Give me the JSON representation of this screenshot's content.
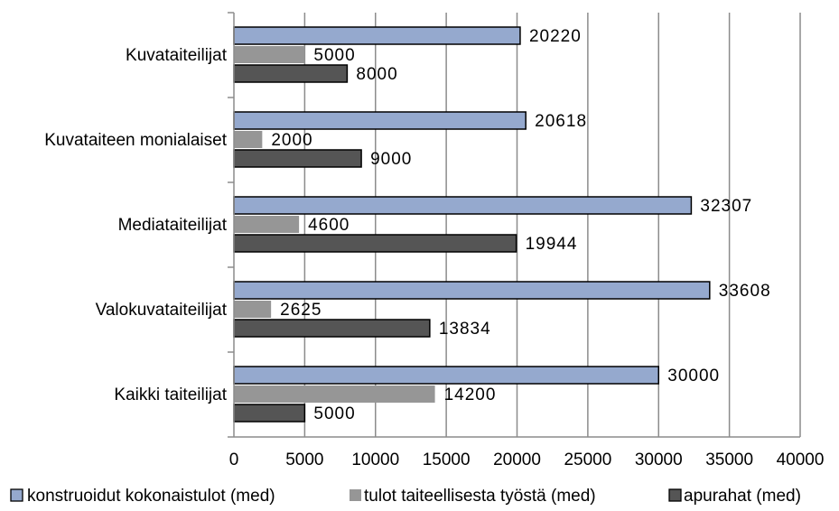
{
  "chart_data": {
    "type": "bar",
    "orientation": "horizontal",
    "categories": [
      "Kuvataiteilijat",
      "Kuvataiteen monialaiset",
      "Mediataiteilijat",
      "Valokuvataiteilijat",
      "Kaikki taiteilijat"
    ],
    "series": [
      {
        "name": "konstruoidut kokonaistulot  (med)",
        "values": [
          20220,
          20618,
          32307,
          33608,
          30000
        ],
        "color": "#95A9CE"
      },
      {
        "name": "tulot taiteellisesta  työstä  (med)",
        "values": [
          5000,
          2000,
          4600,
          2625,
          14200
        ],
        "color": "#969696"
      },
      {
        "name": "apurahat  (med)",
        "values": [
          8000,
          9000,
          19944,
          13834,
          5000
        ],
        "color": "#555555"
      }
    ],
    "xlim": [
      0,
      40000
    ],
    "xticks": [
      "0",
      "5000",
      "10000",
      "15000",
      "20000",
      "25000",
      "30000",
      "35000",
      "40000"
    ],
    "grid": true,
    "legend_position": "bottom",
    "title": "",
    "xlabel": "",
    "ylabel": ""
  }
}
